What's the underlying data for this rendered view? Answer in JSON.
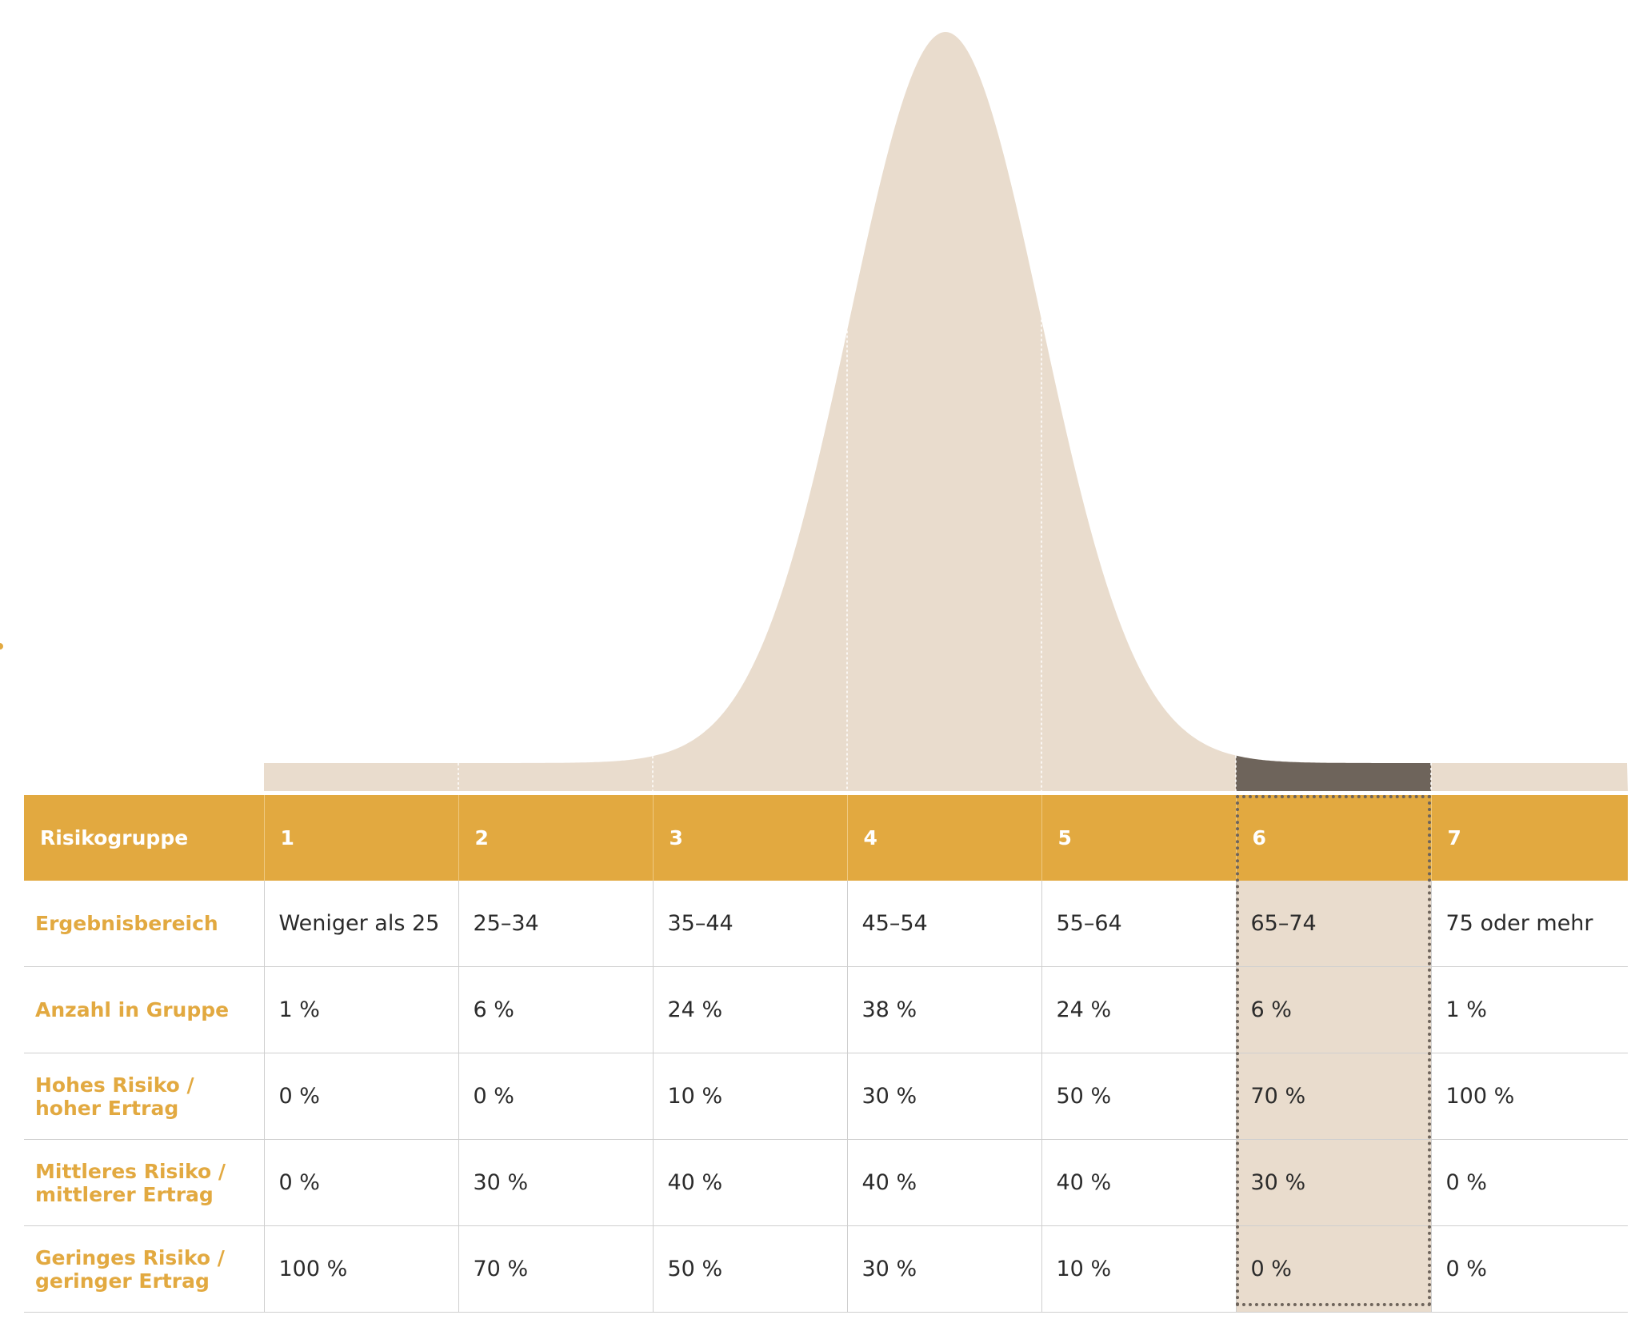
{
  "chart_data": {
    "type": "area",
    "x_categories": [
      "1",
      "2",
      "3",
      "4",
      "5",
      "6",
      "7"
    ],
    "highlighted_group": "6",
    "colors": {
      "curve": "#e9dccd",
      "highlight": "#6e645b",
      "accent": "#e2a940",
      "text": "#2b2b2b"
    }
  },
  "table": {
    "header": {
      "label": "Risikogruppe",
      "groups": [
        "1",
        "2",
        "3",
        "4",
        "5",
        "6",
        "7"
      ]
    },
    "rows": [
      {
        "label": "Ergebnisbereich",
        "values": [
          "Weniger als 25",
          "25–34",
          "35–44",
          "45–54",
          "55–64",
          "65–74",
          "75 oder mehr"
        ]
      },
      {
        "label": "Anzahl in Gruppe",
        "values": [
          "1 %",
          "6 %",
          "24 %",
          "38 %",
          "24 %",
          "6 %",
          "1 %"
        ]
      },
      {
        "label": "Hohes Risiko / hoher Ertrag",
        "values": [
          "0 %",
          "0 %",
          "10 %",
          "30 %",
          "50 %",
          "70 %",
          "100 %"
        ]
      },
      {
        "label": "Mittleres Risiko / mittlerer Ertrag",
        "values": [
          "0 %",
          "30 %",
          "40 %",
          "40 %",
          "40 %",
          "30 %",
          "0 %"
        ]
      },
      {
        "label": "Geringes Risiko / geringer Ertrag",
        "values": [
          "100 %",
          "70 %",
          "50 %",
          "30 %",
          "10 %",
          "0 %",
          "0 %"
        ]
      }
    ]
  }
}
